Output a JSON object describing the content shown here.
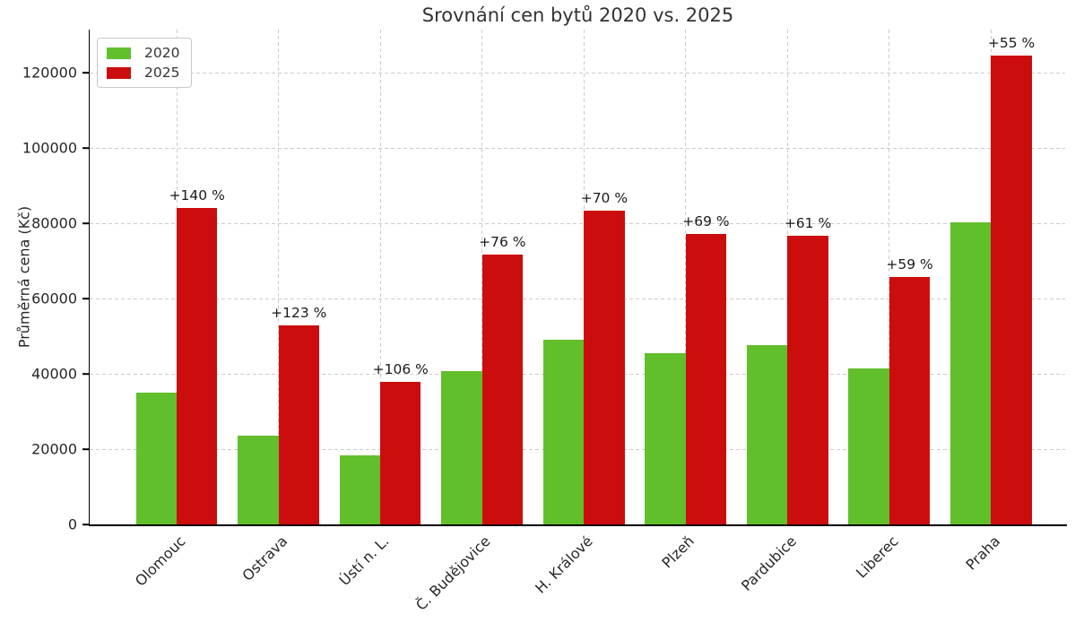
{
  "chart_data": {
    "type": "bar",
    "title": "Srovnání cen bytů 2020 vs. 2025",
    "ylabel": "Průměrná cena (Kč)",
    "xlabel": "",
    "categories": [
      "Olomouc",
      "Ostrava",
      "Ústí n. L.",
      "Č. Budějovice",
      "H. Králové",
      "Plzeň",
      "Pardubice",
      "Liberec",
      "Praha"
    ],
    "series": [
      {
        "name": "2020",
        "color": "#62bf2c",
        "values": [
          35000,
          23700,
          18400,
          40700,
          49000,
          45600,
          47700,
          41400,
          80300
        ]
      },
      {
        "name": "2025",
        "color": "#cc0d0d",
        "values": [
          84000,
          52900,
          37900,
          71600,
          83300,
          77100,
          76800,
          65800,
          124500
        ]
      }
    ],
    "annotations": [
      "+140 %",
      "+123 %",
      "+106 %",
      "+76 %",
      "+70 %",
      "+69 %",
      "+61 %",
      "+59 %",
      "+55 %"
    ],
    "yticks": [
      0,
      20000,
      40000,
      60000,
      80000,
      100000,
      120000
    ],
    "ylim": [
      0,
      131500
    ],
    "grid": "dashed, both axes",
    "legend_position": "upper-left",
    "colors": {
      "grid": "#cccccc",
      "spine": "#000000",
      "text": "#262626",
      "title": "#333333"
    }
  }
}
